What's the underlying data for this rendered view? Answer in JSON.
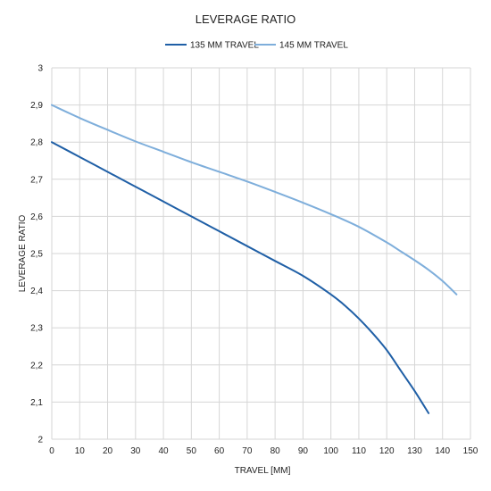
{
  "chart_data": {
    "type": "line",
    "title": "LEVERAGE RATIO",
    "xlabel": "TRAVEL [MM]",
    "ylabel": "LEVERAGE RATIO",
    "xlim": [
      0,
      150
    ],
    "ylim": [
      2,
      3
    ],
    "xticks": [
      "0",
      "10",
      "20",
      "30",
      "40",
      "50",
      "60",
      "70",
      "80",
      "90",
      "100",
      "110",
      "120",
      "130",
      "140",
      "150"
    ],
    "yticks": [
      "2",
      "2,1",
      "2,2",
      "2,3",
      "2,4",
      "2,5",
      "2,6",
      "2,7",
      "2,8",
      "2,9",
      "3"
    ],
    "grid": true,
    "legend_position": "top-center",
    "series": [
      {
        "name": "135 MM TRAVEL",
        "color": "#1f5fa6",
        "x": [
          0,
          10,
          20,
          30,
          40,
          50,
          60,
          70,
          80,
          90,
          100,
          105,
          110,
          115,
          120,
          125,
          130,
          135
        ],
        "y": [
          2.8,
          2.76,
          2.72,
          2.68,
          2.64,
          2.6,
          2.56,
          2.52,
          2.48,
          2.44,
          2.39,
          2.36,
          2.325,
          2.285,
          2.24,
          2.185,
          2.13,
          2.07
        ]
      },
      {
        "name": "145 MM TRAVEL",
        "color": "#7eaedb",
        "x": [
          0,
          10,
          20,
          30,
          40,
          50,
          60,
          70,
          80,
          90,
          100,
          110,
          120,
          125,
          130,
          135,
          140,
          145
        ],
        "y": [
          2.9,
          2.865,
          2.833,
          2.802,
          2.774,
          2.746,
          2.72,
          2.694,
          2.666,
          2.637,
          2.606,
          2.572,
          2.53,
          2.506,
          2.482,
          2.456,
          2.426,
          2.39
        ]
      }
    ]
  }
}
